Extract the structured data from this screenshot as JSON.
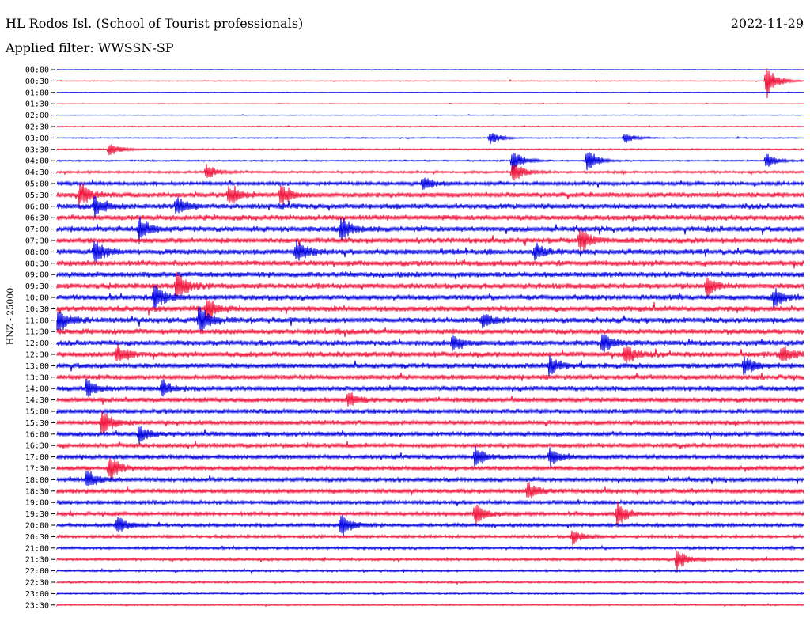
{
  "header": {
    "station": "HL Rodos Isl. (School of Tourist professionals)",
    "date": "2022-11-29",
    "filter": "Applied filter: WWSSN-SP"
  },
  "chart_data": {
    "type": "line",
    "title": "HL Rodos Isl. (School of Tourist professionals)",
    "date": "2022-11-29",
    "filter": "WWSSN-SP",
    "ylabel": "HNZ - 25000",
    "row_labels": [
      "00:00",
      "00:30",
      "01:00",
      "01:30",
      "02:00",
      "02:30",
      "03:00",
      "03:30",
      "04:00",
      "04:30",
      "05:00",
      "05:30",
      "06:00",
      "06:30",
      "07:00",
      "07:30",
      "08:00",
      "08:30",
      "09:00",
      "09:30",
      "10:00",
      "10:30",
      "11:00",
      "11:30",
      "12:00",
      "12:30",
      "13:00",
      "13:30",
      "14:00",
      "14:30",
      "15:00",
      "15:30",
      "16:00",
      "16:30",
      "17:00",
      "17:30",
      "18:00",
      "18:30",
      "19:00",
      "19:30",
      "20:00",
      "20:30",
      "21:00",
      "21:30",
      "22:00",
      "22:30",
      "23:00",
      "23:30"
    ],
    "series_colors": [
      "#0000e0",
      "#f0143c"
    ],
    "noise_level": [
      0.1,
      0.15,
      0.1,
      0.12,
      0.12,
      0.18,
      0.2,
      0.25,
      0.25,
      0.4,
      0.6,
      0.8,
      0.9,
      0.9,
      0.9,
      0.9,
      0.9,
      0.9,
      0.9,
      0.9,
      0.9,
      0.9,
      0.9,
      0.9,
      0.9,
      0.9,
      0.85,
      0.8,
      0.8,
      0.8,
      0.75,
      0.75,
      0.7,
      0.7,
      0.7,
      0.7,
      0.7,
      0.7,
      0.65,
      0.6,
      0.55,
      0.5,
      0.45,
      0.4,
      0.35,
      0.3,
      0.25,
      0.2
    ],
    "events": [
      {
        "row": 1,
        "t": 0.95,
        "amp": 2.0
      },
      {
        "row": 6,
        "t": 0.58,
        "amp": 0.7
      },
      {
        "row": 6,
        "t": 0.76,
        "amp": 0.6
      },
      {
        "row": 7,
        "t": 0.07,
        "amp": 0.8
      },
      {
        "row": 8,
        "t": 0.61,
        "amp": 1.3
      },
      {
        "row": 8,
        "t": 0.71,
        "amp": 1.4
      },
      {
        "row": 8,
        "t": 0.95,
        "amp": 0.8
      },
      {
        "row": 9,
        "t": 0.61,
        "amp": 1.2
      },
      {
        "row": 9,
        "t": 0.2,
        "amp": 0.8
      },
      {
        "row": 10,
        "t": 0.49,
        "amp": 0.8
      },
      {
        "row": 11,
        "t": 0.03,
        "amp": 1.3
      },
      {
        "row": 11,
        "t": 0.23,
        "amp": 1.0
      },
      {
        "row": 11,
        "t": 0.3,
        "amp": 1.2
      },
      {
        "row": 12,
        "t": 0.05,
        "amp": 1.2
      },
      {
        "row": 12,
        "t": 0.16,
        "amp": 1.0
      },
      {
        "row": 14,
        "t": 0.11,
        "amp": 1.3
      },
      {
        "row": 14,
        "t": 0.38,
        "amp": 1.3
      },
      {
        "row": 15,
        "t": 0.7,
        "amp": 1.3
      },
      {
        "row": 16,
        "t": 0.05,
        "amp": 1.4
      },
      {
        "row": 16,
        "t": 0.32,
        "amp": 1.3
      },
      {
        "row": 16,
        "t": 0.64,
        "amp": 0.9
      },
      {
        "row": 19,
        "t": 0.16,
        "amp": 1.6
      },
      {
        "row": 19,
        "t": 0.87,
        "amp": 1.0
      },
      {
        "row": 20,
        "t": 0.13,
        "amp": 1.5
      },
      {
        "row": 20,
        "t": 0.96,
        "amp": 1.0
      },
      {
        "row": 21,
        "t": 0.2,
        "amp": 1.3
      },
      {
        "row": 22,
        "t": 0.0,
        "amp": 1.3
      },
      {
        "row": 22,
        "t": 0.19,
        "amp": 1.6
      },
      {
        "row": 22,
        "t": 0.57,
        "amp": 0.8
      },
      {
        "row": 24,
        "t": 0.73,
        "amp": 1.1
      },
      {
        "row": 24,
        "t": 0.53,
        "amp": 0.9
      },
      {
        "row": 25,
        "t": 0.08,
        "amp": 1.0
      },
      {
        "row": 25,
        "t": 0.76,
        "amp": 1.0
      },
      {
        "row": 25,
        "t": 0.97,
        "amp": 1.0
      },
      {
        "row": 26,
        "t": 0.66,
        "amp": 0.9
      },
      {
        "row": 26,
        "t": 0.92,
        "amp": 0.9
      },
      {
        "row": 28,
        "t": 0.04,
        "amp": 1.0
      },
      {
        "row": 28,
        "t": 0.14,
        "amp": 1.0
      },
      {
        "row": 29,
        "t": 0.39,
        "amp": 0.9
      },
      {
        "row": 31,
        "t": 0.06,
        "amp": 1.4
      },
      {
        "row": 32,
        "t": 0.11,
        "amp": 0.9
      },
      {
        "row": 34,
        "t": 0.56,
        "amp": 1.1
      },
      {
        "row": 34,
        "t": 0.66,
        "amp": 1.0
      },
      {
        "row": 35,
        "t": 0.07,
        "amp": 1.3
      },
      {
        "row": 36,
        "t": 0.04,
        "amp": 1.0
      },
      {
        "row": 37,
        "t": 0.63,
        "amp": 0.9
      },
      {
        "row": 39,
        "t": 0.56,
        "amp": 1.3
      },
      {
        "row": 39,
        "t": 0.75,
        "amp": 1.3
      },
      {
        "row": 40,
        "t": 0.08,
        "amp": 1.1
      },
      {
        "row": 40,
        "t": 0.38,
        "amp": 1.3
      },
      {
        "row": 41,
        "t": 0.69,
        "amp": 0.8
      },
      {
        "row": 43,
        "t": 0.83,
        "amp": 1.3
      }
    ]
  }
}
